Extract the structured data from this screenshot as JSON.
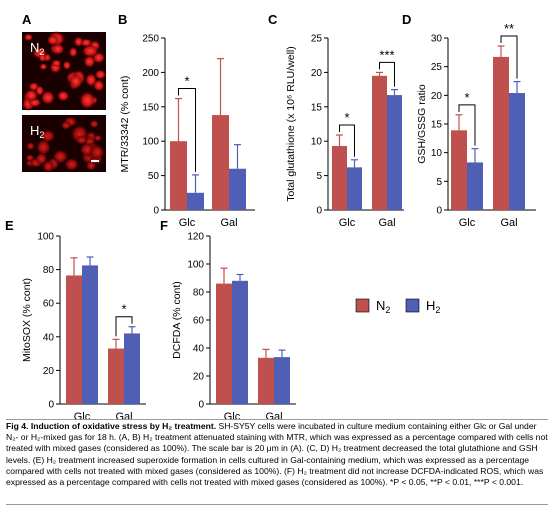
{
  "panel_letters": {
    "A": "A",
    "B": "B",
    "C": "C",
    "D": "D",
    "E": "E",
    "F": "F"
  },
  "micrographs": [
    {
      "label_main": "N",
      "label_sub": "2"
    },
    {
      "label_main": "H",
      "label_sub": "2"
    }
  ],
  "legend": [
    {
      "main": "N",
      "sub": "2",
      "color": "#c0504d"
    },
    {
      "main": "H",
      "sub": "2",
      "color": "#4f5fb5"
    }
  ],
  "colors": {
    "n2": "#c0504d",
    "h2": "#4f5fb5",
    "axis": "#000000"
  },
  "chart_data": [
    {
      "id": "B",
      "type": "bar",
      "categories": [
        "Glc",
        "Gal"
      ],
      "ylabel": "MTR/33342 (% cont)",
      "ylim": [
        0,
        250
      ],
      "yticks": [
        0,
        50,
        100,
        150,
        200,
        250
      ],
      "series": [
        {
          "name": "N2",
          "values": [
            100,
            138
          ],
          "err": [
            62,
            82
          ]
        },
        {
          "name": "H2",
          "values": [
            25,
            60
          ],
          "err": [
            26,
            35
          ]
        }
      ],
      "annotations": [
        {
          "category": "Glc",
          "text": "*"
        }
      ]
    },
    {
      "id": "C",
      "type": "bar",
      "categories": [
        "Glc",
        "Gal"
      ],
      "ylabel": "Total glutathione (x 10⁶ RLU/well)",
      "ylim": [
        0,
        25
      ],
      "yticks": [
        0,
        5,
        10,
        15,
        20,
        25
      ],
      "series": [
        {
          "name": "N2",
          "values": [
            9.3,
            19.5
          ],
          "err": [
            1.6,
            0.5
          ]
        },
        {
          "name": "H2",
          "values": [
            6.2,
            16.7
          ],
          "err": [
            1.1,
            0.8
          ]
        }
      ],
      "annotations": [
        {
          "category": "Glc",
          "text": "*"
        },
        {
          "category": "Gal",
          "text": "***"
        }
      ]
    },
    {
      "id": "D",
      "type": "bar",
      "categories": [
        "Glc",
        "Gal"
      ],
      "ylabel": "GSH/GSSG ratio",
      "ylim": [
        0,
        30
      ],
      "yticks": [
        0,
        5,
        10,
        15,
        20,
        25,
        30
      ],
      "series": [
        {
          "name": "N2",
          "values": [
            13.9,
            26.7
          ],
          "err": [
            2.7,
            1.9
          ]
        },
        {
          "name": "H2",
          "values": [
            8.3,
            20.4
          ],
          "err": [
            2.4,
            2.0
          ]
        }
      ],
      "annotations": [
        {
          "category": "Glc",
          "text": "*"
        },
        {
          "category": "Gal",
          "text": "**"
        }
      ]
    },
    {
      "id": "E",
      "type": "bar",
      "categories": [
        "Glc",
        "Gal"
      ],
      "ylabel": "MitoSOX (% cont)",
      "ylim": [
        0,
        100
      ],
      "yticks": [
        0,
        20,
        40,
        60,
        80,
        100
      ],
      "series": [
        {
          "name": "N2",
          "values": [
            76.5,
            33
          ],
          "err": [
            10.5,
            5.5
          ]
        },
        {
          "name": "H2",
          "values": [
            82.5,
            42
          ],
          "err": [
            5,
            4
          ]
        }
      ],
      "annotations": [
        {
          "category": "Gal",
          "text": "*"
        }
      ]
    },
    {
      "id": "F",
      "type": "bar",
      "categories": [
        "Glc",
        "Gal"
      ],
      "ylabel": "DCFDA (% cont)",
      "ylim": [
        0,
        120
      ],
      "yticks": [
        0,
        20,
        40,
        60,
        80,
        100,
        120
      ],
      "series": [
        {
          "name": "N2",
          "values": [
            86,
            33
          ],
          "err": [
            11,
            6
          ]
        },
        {
          "name": "H2",
          "values": [
            88,
            33.5
          ],
          "err": [
            4.5,
            5
          ]
        }
      ],
      "annotations": []
    }
  ],
  "caption": {
    "title": "Fig 4. Induction of oxidative stress by H₂ treatment.",
    "body": " SH-SY5Y cells were incubated in culture medium containing either Glc or Gal under N₂- or H₂-mixed gas for 18 h. (A, B) H₂ treatment attenuated staining with MTR, which was expressed as a percentage compared with cells not treated with mixed gases (considered as 100%). The scale bar is 20 μm in (A). (C, D) H₂ treatment decreased the total glutathione and GSH levels. (E) H₂ treatment increased superoxide formation in cells cultured in Gal-containing medium, which was expressed as a percentage compared with cells not treated with mixed gases (considered as 100%). (F) H₂ treatment did not increase DCFDA-indicated ROS, which was expressed as a percentage compared with cells not treated with mixed gases (considered as 100%). *P < 0.05, **P < 0.01, ***P < 0.001."
  }
}
